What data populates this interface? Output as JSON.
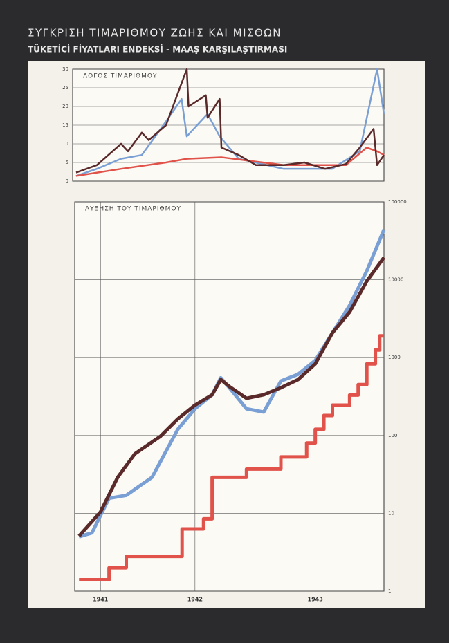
{
  "header": {
    "title": "ΣΥΓΚΡΙΣΗ ΤΙΜΑΡΙΘΜΟΥ ΖΩΗΣ ΚΑΙ ΜΙΣΘΩΝ",
    "subtitle": "TÜKETİCİ FİYATLARI ENDEKSİ - MAAŞ KARŞILAŞTIRMASI"
  },
  "chart_data": [
    {
      "type": "line",
      "title": "ΛΟΓΟΣ ΤΙΜΑΡΙΘΜΟΥ",
      "xlim": [
        0,
        36
      ],
      "ylim": [
        0,
        30
      ],
      "yticks": [
        0,
        5,
        10,
        15,
        20,
        25,
        30
      ],
      "grid": true,
      "log_y": false,
      "series": [
        {
          "color": "#7a9fd4",
          "x": [
            0.4,
            2.8,
            5.6,
            8,
            10.8,
            12.6,
            13.2,
            15.6,
            17,
            19.2,
            24.4,
            30,
            33.2,
            35.2,
            36
          ],
          "values": [
            1.4,
            3.3,
            6,
            7,
            16,
            22,
            12,
            18,
            12,
            6,
            3.3,
            3.3,
            8,
            30,
            18
          ]
        },
        {
          "color": "#e0524a",
          "x": [
            0.4,
            5.6,
            10.8,
            13.2,
            17.2,
            24.4,
            31.6,
            34,
            35.2,
            36
          ],
          "values": [
            1.4,
            3.3,
            5,
            6,
            6.4,
            4.3,
            4.3,
            9,
            8,
            7
          ]
        },
        {
          "color": "#5a2a2a",
          "x": [
            0.4,
            2.8,
            5.6,
            6.4,
            8,
            8.8,
            10.8,
            13.2,
            13.4,
            15.4,
            15.6,
            17,
            17.2,
            19.2,
            21.2,
            24.4,
            26.8,
            29.2,
            31.6,
            33.2,
            34.8,
            35.2,
            36
          ],
          "values": [
            2.3,
            4.3,
            10,
            8,
            13,
            11,
            15,
            30,
            20,
            23,
            17,
            22,
            9,
            7,
            4.3,
            4.3,
            5,
            3.3,
            4.6,
            9,
            14,
            4.3,
            7
          ]
        }
      ]
    },
    {
      "type": "line",
      "title": "ΑΥΞΗΣΗ ΤΟΥ ΤΙΜΑΡΙΘΜΟΥ",
      "xlim": [
        0,
        36
      ],
      "ylim": [
        1,
        100000
      ],
      "log_y": true,
      "grid": true,
      "yticks": [
        1,
        10,
        100,
        1000,
        10000,
        100000
      ],
      "xticks": [
        {
          "value": 3,
          "label": "1941"
        },
        {
          "value": 14,
          "label": "1942"
        },
        {
          "value": 28,
          "label": "1943"
        }
      ],
      "series": [
        {
          "color": "#7a9fd4",
          "x": [
            0.5,
            2,
            4,
            6,
            9,
            12,
            14,
            16,
            17,
            18,
            20,
            22,
            24,
            26,
            28,
            30,
            32,
            34,
            36
          ],
          "values": [
            5,
            5.6,
            15.6,
            17,
            29,
            120,
            220,
            333,
            550,
            410,
            220,
            200,
            500,
            610,
            920,
            2080,
            4700,
            13000,
            44000
          ]
        },
        {
          "color": "#5a2a2a",
          "x": [
            0.5,
            3,
            5,
            7,
            10,
            12,
            14,
            16,
            17,
            18,
            20,
            22,
            24,
            26,
            28,
            30,
            32,
            34,
            36
          ],
          "values": [
            5.1,
            10.4,
            29,
            58,
            98,
            163,
            245,
            333,
            522,
            425,
            300,
            333,
            410,
            522,
            830,
            2080,
            3850,
            9600,
            19300
          ]
        },
        {
          "color": "#e0524a",
          "x": [
            0.5,
            4,
            4,
            6,
            6,
            12.5,
            12.5,
            15,
            15,
            16,
            16,
            20,
            20,
            24,
            24,
            27,
            27,
            28,
            28,
            29,
            29,
            30,
            30,
            32,
            32,
            33,
            33,
            34,
            34,
            35,
            35,
            35.5,
            35.5,
            36
          ],
          "values": [
            1.4,
            1.4,
            2,
            2,
            2.8,
            2.8,
            6.3,
            6.3,
            8.5,
            8.5,
            29,
            29,
            37,
            37,
            53,
            53,
            80,
            80,
            120,
            120,
            180,
            180,
            245,
            245,
            330,
            330,
            450,
            450,
            830,
            830,
            1250,
            1250,
            1900,
            1900
          ]
        }
      ]
    }
  ]
}
